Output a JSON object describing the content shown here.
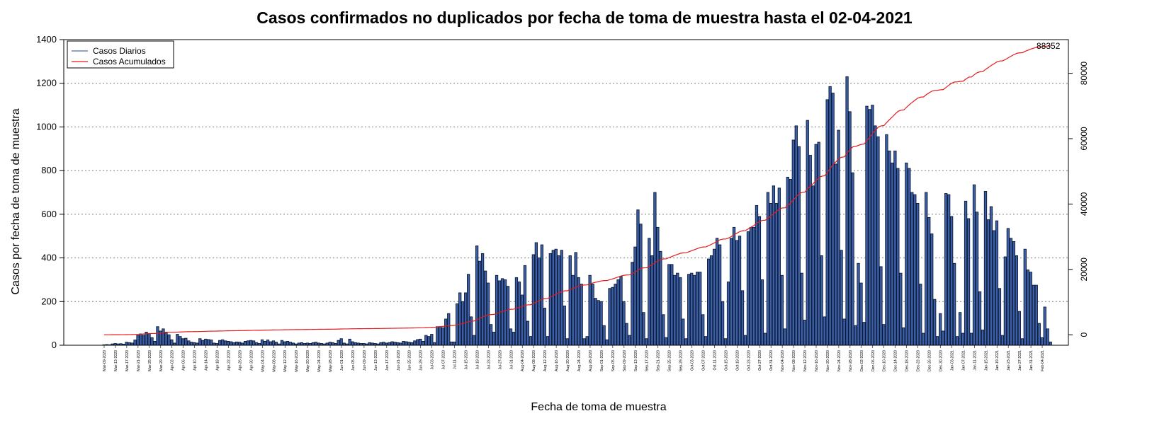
{
  "chart_data": {
    "type": "bar",
    "title": "Casos confirmados no duplicados por fecha de toma de muestra hasta el 02-04-2021",
    "xlabel": "Fecha de toma de muestra",
    "ylabel": "Casos por fecha de toma de muestra",
    "ylim": [
      0,
      1400
    ],
    "y_ticks": [
      0,
      200,
      400,
      600,
      800,
      1000,
      1200,
      1400
    ],
    "y2lim": [
      -3200,
      90300
    ],
    "y2_ticks": [
      0,
      20000,
      40000,
      60000,
      80000
    ],
    "x_range": [
      "2020-03-09",
      "2021-02-04"
    ],
    "x_tick_labels": [
      "Mar-09-2020",
      "Mar-13-2020",
      "Mar-17-2020",
      "Mar-21-2020",
      "Mar-25-2020",
      "Mar-29-2020",
      "Apr-02-2020",
      "Apr-06-2020",
      "Apr-10-2020",
      "Apr-14-2020",
      "Apr-18-2020",
      "Apr-22-2020",
      "Apr-26-2020",
      "Apr-30-2020",
      "May-04-2020",
      "May-08-2020",
      "May-12-2020",
      "May-16-2020",
      "May-20-2020",
      "May-24-2020",
      "May-28-2020",
      "Jun-01-2020",
      "Jun-05-2020",
      "Jun-09-2020",
      "Jun-13-2020",
      "Jun-17-2020",
      "Jun-21-2020",
      "Jun-25-2020",
      "Jun-29-2020",
      "Jul-03-2020",
      "Jul-07-2020",
      "Jul-11-2020",
      "Jul-15-2020",
      "Jul-19-2020",
      "Jul-23-2020",
      "Jul-27-2020",
      "Jul-31-2020",
      "Aug-04-2020",
      "Aug-08-2020",
      "Aug-12-2020",
      "Aug-16-2020",
      "Aug-20-2020",
      "Aug-24-2020",
      "Aug-28-2020",
      "Sep-01-2020",
      "Sep-05-2020",
      "Sep-09-2020",
      "Sep-13-2020",
      "Sep-17-2020",
      "Sep-21-2020",
      "Sep-25-2020",
      "Sep-29-2020",
      "Oct-03-2020",
      "Oct-07-2020",
      "Oct-11-2020",
      "Oct-15-2020",
      "Oct-19-2020",
      "Oct-23-2020",
      "Oct-27-2020",
      "Oct-31-2020",
      "Nov-04-2020",
      "Nov-08-2020",
      "Nov-12-2020",
      "Nov-16-2020",
      "Nov-20-2020",
      "Nov-24-2020",
      "Nov-28-2020",
      "Dec-02-2020",
      "Dec-06-2020",
      "Dec-10-2020",
      "Dec-14-2020",
      "Dec-18-2020",
      "Dec-22-2020",
      "Dec-26-2020",
      "Dec-30-2020",
      "Jan-03-2021",
      "Jan-07-2021",
      "Jan-11-2021",
      "Jan-15-2021",
      "Jan-19-2021",
      "Jan-23-2021",
      "Jan-27-2021",
      "Jan-31-2021",
      "Feb-04-2021"
    ],
    "legend": {
      "position": "top-left",
      "entries": [
        {
          "name": "Casos Diarios",
          "color": "#4a6fa5"
        },
        {
          "name": "Casos Acumulados",
          "color": "#e41a1c"
        }
      ]
    },
    "final_cumulative_label": "88352",
    "grid": true,
    "series": [
      {
        "name": "Casos Diarios",
        "kind": "bar",
        "color": "#3d5fa8",
        "values": [
          2,
          3,
          2,
          6,
          8,
          6,
          7,
          5,
          14,
          12,
          10,
          24,
          45,
          52,
          46,
          60,
          54,
          35,
          18,
          85,
          65,
          75,
          60,
          48,
          25,
          10,
          50,
          40,
          30,
          32,
          20,
          14,
          12,
          10,
          30,
          22,
          28,
          26,
          24,
          10,
          8,
          22,
          25,
          20,
          18,
          16,
          12,
          15,
          14,
          10,
          18,
          20,
          22,
          20,
          12,
          8,
          25,
          18,
          24,
          16,
          20,
          14,
          6,
          22,
          16,
          18,
          14,
          10,
          6,
          10,
          12,
          8,
          10,
          8,
          12,
          14,
          10,
          8,
          6,
          10,
          14,
          12,
          8,
          22,
          30,
          10,
          6,
          28,
          16,
          12,
          10,
          8,
          8,
          6,
          12,
          10,
          8,
          6,
          12,
          14,
          10,
          12,
          16,
          14,
          12,
          10,
          18,
          16,
          14,
          12,
          20,
          26,
          28,
          18,
          45,
          40,
          50,
          12,
          85,
          85,
          80,
          120,
          145,
          15,
          15,
          190,
          240,
          200,
          240,
          325,
          130,
          45,
          455,
          385,
          420,
          340,
          285,
          95,
          60,
          320,
          295,
          305,
          300,
          270,
          75,
          60,
          310,
          290,
          230,
          365,
          110,
          40,
          415,
          470,
          400,
          460,
          170,
          40,
          420,
          435,
          440,
          410,
          435,
          180,
          30,
          410,
          320,
          425,
          310,
          280,
          30,
          40,
          320,
          280,
          215,
          205,
          200,
          90,
          25,
          260,
          265,
          280,
          300,
          315,
          200,
          100,
          45,
          380,
          450,
          620,
          555,
          150,
          30,
          490,
          410,
          700,
          540,
          430,
          140,
          35,
          370,
          370,
          320,
          330,
          310,
          120,
          30,
          325,
          330,
          320,
          335,
          335,
          140,
          40,
          395,
          410,
          440,
          490,
          460,
          200,
          30,
          290,
          490,
          540,
          480,
          500,
          250,
          45,
          520,
          540,
          540,
          640,
          590,
          300,
          55,
          700,
          650,
          730,
          650,
          720,
          320,
          75,
          770,
          760,
          940,
          1005,
          910,
          330,
          115,
          1030,
          870,
          730,
          920,
          930,
          410,
          130,
          1125,
          1185,
          1155,
          830,
          985,
          435,
          120,
          1230,
          1070,
          790,
          90,
          375,
          285,
          105,
          1095,
          1080,
          1100,
          1005,
          955,
          360,
          95,
          965,
          890,
          835,
          890,
          810,
          330,
          80,
          835,
          810,
          700,
          690,
          650,
          280,
          55,
          700,
          585,
          510,
          210,
          40,
          145,
          65,
          695,
          690,
          590,
          375,
          40,
          150,
          55,
          660,
          580,
          55,
          735,
          610,
          245,
          70,
          705,
          575,
          635,
          525,
          570,
          260,
          45,
          405,
          535,
          490,
          475,
          410,
          155,
          30,
          440,
          345,
          335,
          275,
          275,
          100,
          35,
          175,
          75,
          15
        ]
      },
      {
        "name": "Casos Acumulados",
        "kind": "line",
        "color": "#e41a1c",
        "axis": "right",
        "final_value": 88352
      }
    ]
  }
}
